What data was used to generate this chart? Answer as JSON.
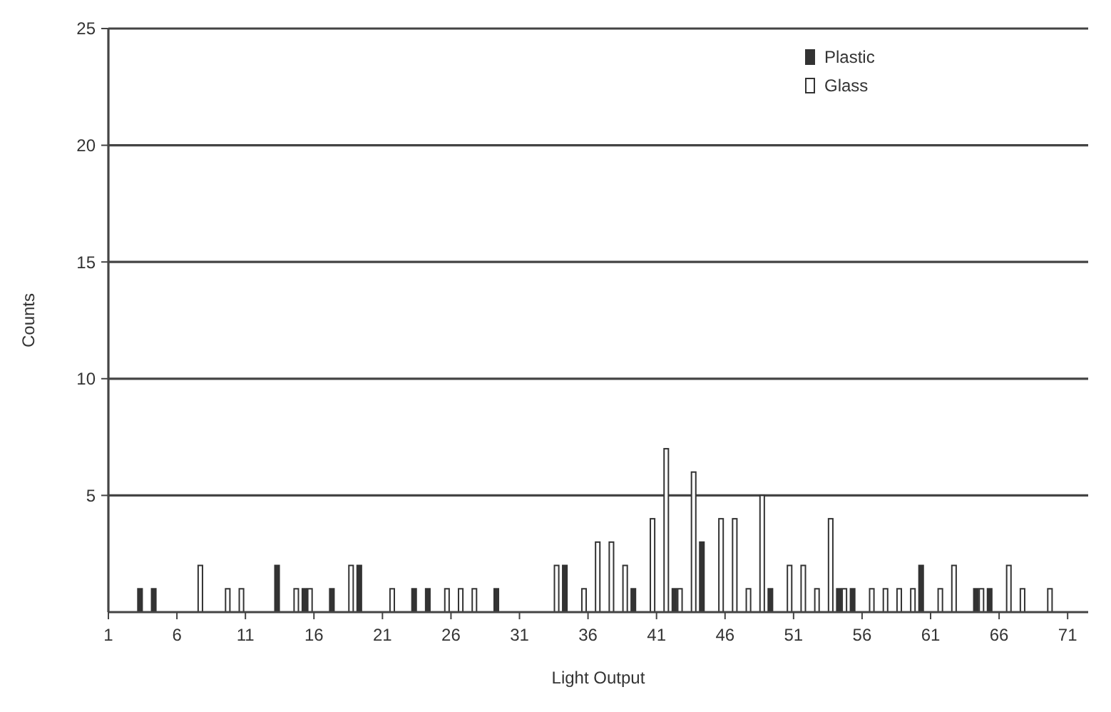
{
  "chart_data": {
    "type": "histogram",
    "xlabel": "Light Output",
    "ylabel": "Counts",
    "bins": [
      1,
      2,
      3,
      4,
      5,
      6,
      7,
      8,
      9,
      10,
      11,
      12,
      13,
      14,
      15,
      16,
      17,
      18,
      19,
      20,
      21,
      22,
      23,
      24,
      25,
      26,
      27,
      28,
      29,
      30,
      31,
      32,
      33,
      34,
      35,
      36,
      37,
      38,
      39,
      40,
      41,
      42,
      43,
      44,
      45,
      46,
      47,
      48,
      49,
      50,
      51,
      52,
      53,
      54,
      55,
      56,
      57,
      58,
      59,
      60,
      61,
      62,
      63,
      64,
      65,
      66,
      67,
      68,
      69,
      70,
      71,
      72
    ],
    "series": [
      {
        "name": "Plastic",
        "color": "#333333",
        "values": [
          0,
          0,
          1,
          1,
          0,
          0,
          0,
          0,
          0,
          0,
          0,
          0,
          2,
          0,
          1,
          0,
          1,
          0,
          2,
          0,
          0,
          0,
          1,
          1,
          0,
          0,
          0,
          0,
          1,
          0,
          0,
          0,
          0,
          2,
          0,
          0,
          0,
          0,
          1,
          0,
          0,
          1,
          0,
          3,
          0,
          0,
          0,
          0,
          1,
          0,
          0,
          0,
          0,
          1,
          1,
          0,
          0,
          0,
          0,
          2,
          0,
          0,
          0,
          1,
          1,
          0,
          0,
          0,
          0,
          0,
          0
        ]
      },
      {
        "name": "Glass",
        "color": "#ffffff",
        "values": [
          0,
          0,
          0,
          0,
          0,
          0,
          2,
          0,
          1,
          1,
          0,
          0,
          0,
          1,
          1,
          0,
          0,
          2,
          0,
          0,
          1,
          0,
          0,
          0,
          1,
          1,
          1,
          0,
          0,
          0,
          0,
          0,
          2,
          0,
          1,
          3,
          3,
          2,
          0,
          4,
          7,
          1,
          6,
          0,
          4,
          4,
          1,
          5,
          0,
          2,
          2,
          1,
          4,
          1,
          0,
          1,
          1,
          1,
          1,
          0,
          1,
          2,
          0,
          1,
          0,
          2,
          1,
          0,
          1,
          0,
          0
        ]
      }
    ],
    "xlim": [
      1,
      72.5
    ],
    "xticks": [
      1,
      6,
      11,
      16,
      21,
      26,
      31,
      36,
      41,
      46,
      51,
      56,
      61,
      66,
      71
    ],
    "ylim": [
      0,
      25
    ],
    "yticks": [
      5,
      10,
      15,
      20,
      25
    ],
    "grid": "y",
    "legend": "top right"
  }
}
